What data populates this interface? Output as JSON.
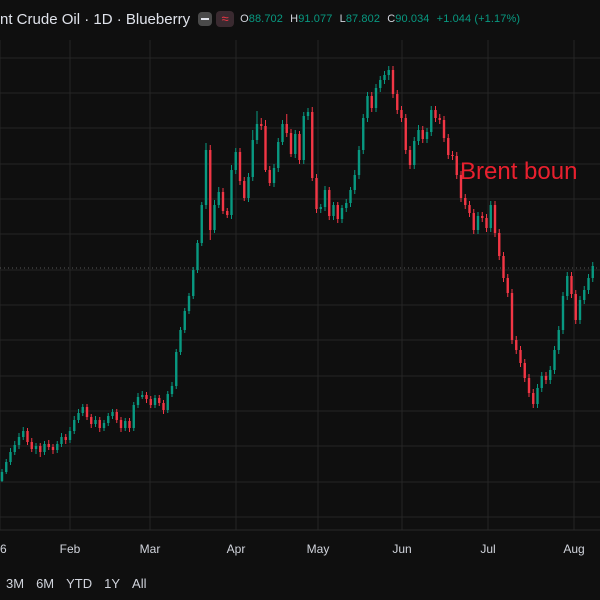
{
  "header": {
    "title": "nt Crude Oil · 1D · Blueberry",
    "o_label": "O",
    "o_value": "88.702",
    "h_label": "H",
    "h_value": "91.077",
    "l_label": "L",
    "l_value": "87.802",
    "c_label": "C",
    "c_value": "90.034",
    "change": "+1.044 (+1.17%)"
  },
  "annotation": "Brent boun",
  "ranges": [
    "3M",
    "6M",
    "YTD",
    "1Y",
    "All"
  ],
  "colors": {
    "up": "#089981",
    "down": "#f23645",
    "background": "#0f0f0f",
    "grid": "#262626",
    "text": "#d1d4dc"
  },
  "chart_data": {
    "type": "candlestick",
    "x_tick_labels": [
      "6",
      "Feb",
      "Mar",
      "Apr",
      "May",
      "Jun",
      "Jul",
      "Aug"
    ],
    "grid": true,
    "series": [
      {
        "values": [
          [
            481,
            472,
            482,
            469
          ],
          [
            472,
            462,
            474,
            459
          ],
          [
            462,
            452,
            465,
            448
          ],
          [
            452,
            445,
            455,
            441
          ],
          [
            445,
            437,
            449,
            433
          ],
          [
            437,
            431,
            440,
            427
          ],
          [
            431,
            442,
            445,
            428
          ],
          [
            442,
            449,
            452,
            438
          ],
          [
            449,
            446,
            454,
            443
          ],
          [
            446,
            452,
            457,
            443
          ],
          [
            452,
            444,
            455,
            441
          ],
          [
            444,
            447,
            450,
            440
          ],
          [
            447,
            450,
            454,
            444
          ],
          [
            450,
            444,
            453,
            441
          ],
          [
            444,
            437,
            447,
            433
          ],
          [
            437,
            440,
            444,
            434
          ],
          [
            440,
            431,
            443,
            427
          ],
          [
            431,
            420,
            434,
            416
          ],
          [
            420,
            413,
            423,
            409
          ],
          [
            413,
            407,
            416,
            404
          ],
          [
            407,
            417,
            420,
            404
          ],
          [
            417,
            424,
            428,
            414
          ],
          [
            424,
            420,
            427,
            416
          ],
          [
            420,
            428,
            432,
            417
          ],
          [
            428,
            423,
            431,
            420
          ],
          [
            423,
            416,
            426,
            413
          ],
          [
            416,
            412,
            419,
            409
          ],
          [
            412,
            420,
            423,
            409
          ],
          [
            420,
            428,
            432,
            417
          ],
          [
            428,
            421,
            431,
            418
          ],
          [
            421,
            428,
            432,
            418
          ],
          [
            428,
            405,
            431,
            402
          ],
          [
            405,
            397,
            408,
            393
          ],
          [
            397,
            395,
            399,
            391
          ],
          [
            395,
            399,
            403,
            392
          ],
          [
            399,
            405,
            408,
            396
          ],
          [
            405,
            398,
            408,
            395
          ],
          [
            398,
            403,
            406,
            395
          ],
          [
            403,
            410,
            414,
            400
          ],
          [
            410,
            394,
            413,
            391
          ],
          [
            394,
            386,
            397,
            382
          ],
          [
            386,
            352,
            389,
            349
          ],
          [
            352,
            330,
            355,
            327
          ],
          [
            330,
            311,
            333,
            308
          ],
          [
            311,
            296,
            314,
            293
          ],
          [
            296,
            270,
            299,
            267
          ],
          [
            270,
            243,
            273,
            240
          ],
          [
            243,
            205,
            246,
            202
          ],
          [
            205,
            150,
            209,
            143
          ],
          [
            150,
            230,
            240,
            145
          ],
          [
            230,
            205,
            233,
            200
          ],
          [
            205,
            192,
            208,
            187
          ],
          [
            192,
            211,
            214,
            188
          ],
          [
            211,
            215,
            218,
            208
          ],
          [
            215,
            170,
            219,
            165
          ],
          [
            170,
            152,
            174,
            148
          ],
          [
            152,
            181,
            185,
            148
          ],
          [
            181,
            198,
            201,
            177
          ],
          [
            198,
            177,
            202,
            173
          ],
          [
            177,
            140,
            181,
            130
          ],
          [
            140,
            124,
            144,
            111
          ],
          [
            124,
            126,
            130,
            118
          ],
          [
            126,
            170,
            172,
            120
          ],
          [
            170,
            183,
            186,
            166
          ],
          [
            183,
            168,
            187,
            164
          ],
          [
            168,
            142,
            172,
            138
          ],
          [
            142,
            124,
            145,
            120
          ],
          [
            124,
            133,
            137,
            114
          ],
          [
            133,
            154,
            157,
            129
          ],
          [
            154,
            134,
            158,
            130
          ],
          [
            134,
            160,
            164,
            131
          ],
          [
            160,
            116,
            164,
            112
          ],
          [
            116,
            112,
            120,
            108
          ],
          [
            112,
            178,
            181,
            107
          ],
          [
            178,
            209,
            213,
            174
          ],
          [
            209,
            207,
            213,
            204
          ],
          [
            207,
            190,
            211,
            186
          ],
          [
            190,
            216,
            220,
            187
          ],
          [
            216,
            205,
            220,
            202
          ],
          [
            205,
            219,
            223,
            202
          ],
          [
            219,
            208,
            223,
            205
          ],
          [
            208,
            203,
            212,
            199
          ],
          [
            203,
            190,
            207,
            187
          ],
          [
            190,
            175,
            194,
            170
          ],
          [
            175,
            150,
            179,
            146
          ],
          [
            150,
            118,
            154,
            114
          ],
          [
            118,
            96,
            122,
            92
          ],
          [
            96,
            108,
            112,
            92
          ],
          [
            108,
            88,
            112,
            84
          ],
          [
            88,
            80,
            92,
            76
          ],
          [
            80,
            75,
            84,
            71
          ],
          [
            75,
            70,
            80,
            66
          ],
          [
            70,
            94,
            98,
            66
          ],
          [
            94,
            110,
            114,
            90
          ],
          [
            110,
            118,
            122,
            106
          ],
          [
            118,
            150,
            154,
            114
          ],
          [
            150,
            165,
            169,
            146
          ],
          [
            165,
            141,
            169,
            137
          ],
          [
            141,
            130,
            145,
            125
          ],
          [
            130,
            139,
            143,
            126
          ],
          [
            139,
            132,
            143,
            128
          ],
          [
            132,
            110,
            136,
            106
          ],
          [
            110,
            118,
            122,
            106
          ],
          [
            118,
            120,
            124,
            114
          ],
          [
            120,
            138,
            142,
            116
          ],
          [
            138,
            155,
            159,
            134
          ],
          [
            155,
            156,
            160,
            151
          ],
          [
            156,
            175,
            179,
            152
          ],
          [
            175,
            198,
            202,
            171
          ],
          [
            198,
            205,
            209,
            194
          ],
          [
            205,
            213,
            217,
            201
          ],
          [
            213,
            230,
            234,
            209
          ],
          [
            230,
            216,
            234,
            212
          ],
          [
            216,
            218,
            222,
            212
          ],
          [
            218,
            228,
            232,
            214
          ],
          [
            228,
            205,
            232,
            201
          ],
          [
            205,
            233,
            237,
            201
          ],
          [
            233,
            256,
            260,
            229
          ],
          [
            256,
            278,
            282,
            252
          ],
          [
            278,
            293,
            297,
            274
          ],
          [
            293,
            340,
            344,
            289
          ],
          [
            340,
            350,
            354,
            336
          ],
          [
            350,
            363,
            367,
            346
          ],
          [
            363,
            378,
            382,
            359
          ],
          [
            378,
            393,
            397,
            374
          ],
          [
            393,
            404,
            408,
            389
          ],
          [
            404,
            388,
            408,
            384
          ],
          [
            388,
            376,
            392,
            372
          ],
          [
            376,
            380,
            384,
            372
          ],
          [
            380,
            370,
            384,
            366
          ],
          [
            370,
            350,
            374,
            346
          ],
          [
            350,
            330,
            354,
            326
          ],
          [
            330,
            296,
            334,
            292
          ],
          [
            296,
            276,
            300,
            272
          ],
          [
            276,
            294,
            298,
            272
          ],
          [
            294,
            320,
            324,
            290
          ],
          [
            320,
            300,
            324,
            296
          ],
          [
            300,
            290,
            304,
            286
          ],
          [
            290,
            278,
            294,
            274
          ],
          [
            278,
            266,
            282,
            262
          ]
        ]
      }
    ]
  }
}
